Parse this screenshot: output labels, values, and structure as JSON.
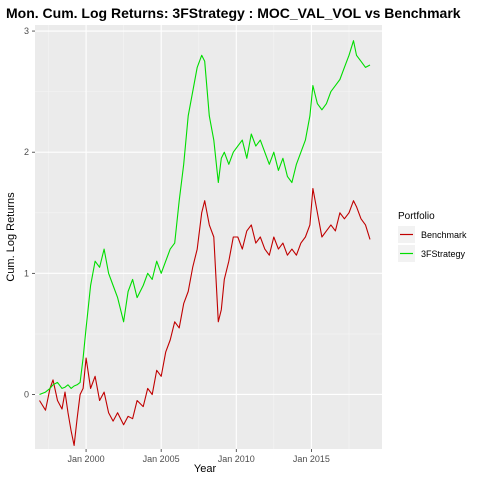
{
  "chart_data": {
    "type": "line",
    "title": "Mon. Cum. Log Returns: 3FStrategy : MOC_VAL_VOL vs Benchmark",
    "xlabel": "Year",
    "ylabel": "Cum. Log Returns",
    "x_tick_labels": [
      "Jan 2000",
      "Jan 2005",
      "Jan 2010",
      "Jan 2015"
    ],
    "x_tick_values": [
      2000,
      2005,
      2010,
      2015
    ],
    "y_tick_labels": [
      "0",
      "1",
      "2",
      "3"
    ],
    "y_tick_values": [
      0,
      1,
      2,
      3
    ],
    "xlim": [
      1996.6,
      2019.7
    ],
    "ylim": [
      -0.45,
      3.05
    ],
    "grid": true,
    "legend": {
      "title": "Portfolio",
      "position": "right"
    },
    "series": [
      {
        "name": "Benchmark",
        "color": "#c00000",
        "x": [
          1996.9,
          1997.3,
          1997.6,
          1997.8,
          1998.1,
          1998.4,
          1998.6,
          1998.8,
          1999.0,
          1999.2,
          1999.4,
          1999.6,
          1999.8,
          2000.0,
          2000.3,
          2000.6,
          2000.9,
          2001.2,
          2001.5,
          2001.8,
          2002.1,
          2002.5,
          2002.8,
          2003.1,
          2003.4,
          2003.8,
          2004.1,
          2004.4,
          2004.7,
          2005.0,
          2005.3,
          2005.6,
          2005.9,
          2006.2,
          2006.5,
          2006.8,
          2007.1,
          2007.4,
          2007.7,
          2007.9,
          2008.2,
          2008.5,
          2008.8,
          2009.0,
          2009.2,
          2009.5,
          2009.8,
          2010.1,
          2010.4,
          2010.7,
          2011.0,
          2011.3,
          2011.6,
          2011.9,
          2012.2,
          2012.5,
          2012.8,
          2013.1,
          2013.4,
          2013.7,
          2014.0,
          2014.3,
          2014.6,
          2014.9,
          2015.1,
          2015.4,
          2015.7,
          2016.0,
          2016.3,
          2016.6,
          2016.9,
          2017.2,
          2017.5,
          2017.8,
          2018.0,
          2018.3,
          2018.6,
          2018.9
        ],
        "values": [
          -0.05,
          -0.13,
          0.05,
          0.12,
          -0.05,
          -0.12,
          0.02,
          -0.15,
          -0.3,
          -0.42,
          -0.2,
          0.0,
          0.05,
          0.3,
          0.05,
          0.15,
          -0.05,
          0.02,
          -0.15,
          -0.22,
          -0.15,
          -0.25,
          -0.18,
          -0.2,
          -0.05,
          -0.1,
          0.05,
          0.0,
          0.2,
          0.15,
          0.35,
          0.45,
          0.6,
          0.55,
          0.75,
          0.85,
          1.05,
          1.2,
          1.5,
          1.6,
          1.4,
          1.3,
          0.6,
          0.7,
          0.95,
          1.1,
          1.3,
          1.3,
          1.2,
          1.35,
          1.4,
          1.25,
          1.3,
          1.2,
          1.15,
          1.3,
          1.2,
          1.25,
          1.15,
          1.2,
          1.15,
          1.25,
          1.3,
          1.4,
          1.7,
          1.5,
          1.3,
          1.35,
          1.4,
          1.35,
          1.5,
          1.45,
          1.5,
          1.6,
          1.55,
          1.45,
          1.4,
          1.28
        ]
      },
      {
        "name": "3FStrategy",
        "color": "#00dd00",
        "x": [
          1996.9,
          1997.3,
          1997.6,
          1997.8,
          1998.1,
          1998.4,
          1998.6,
          1998.8,
          1999.0,
          1999.2,
          1999.4,
          1999.6,
          1999.8,
          2000.0,
          2000.3,
          2000.6,
          2000.9,
          2001.2,
          2001.5,
          2001.8,
          2002.1,
          2002.5,
          2002.8,
          2003.1,
          2003.4,
          2003.8,
          2004.1,
          2004.4,
          2004.7,
          2005.0,
          2005.3,
          2005.6,
          2005.9,
          2006.2,
          2006.5,
          2006.8,
          2007.1,
          2007.4,
          2007.7,
          2007.9,
          2008.2,
          2008.5,
          2008.8,
          2009.0,
          2009.2,
          2009.5,
          2009.8,
          2010.1,
          2010.4,
          2010.7,
          2011.0,
          2011.3,
          2011.6,
          2011.9,
          2012.2,
          2012.5,
          2012.8,
          2013.1,
          2013.4,
          2013.7,
          2014.0,
          2014.3,
          2014.6,
          2014.9,
          2015.1,
          2015.4,
          2015.7,
          2016.0,
          2016.3,
          2016.6,
          2016.9,
          2017.2,
          2017.5,
          2017.8,
          2018.0,
          2018.3,
          2018.6,
          2018.9
        ],
        "values": [
          0.0,
          0.02,
          0.05,
          0.08,
          0.1,
          0.05,
          0.06,
          0.08,
          0.05,
          0.07,
          0.08,
          0.1,
          0.3,
          0.55,
          0.9,
          1.1,
          1.05,
          1.2,
          1.0,
          0.9,
          0.8,
          0.6,
          0.85,
          0.95,
          0.8,
          0.9,
          1.0,
          0.95,
          1.1,
          1.0,
          1.1,
          1.2,
          1.25,
          1.6,
          1.9,
          2.3,
          2.5,
          2.7,
          2.8,
          2.75,
          2.3,
          2.1,
          1.75,
          1.95,
          2.0,
          1.9,
          2.0,
          2.05,
          2.1,
          1.95,
          2.15,
          2.05,
          2.1,
          2.0,
          1.9,
          2.0,
          1.85,
          1.95,
          1.8,
          1.75,
          1.9,
          2.0,
          2.1,
          2.3,
          2.55,
          2.4,
          2.35,
          2.4,
          2.5,
          2.55,
          2.6,
          2.7,
          2.8,
          2.92,
          2.8,
          2.75,
          2.7,
          2.72
        ]
      }
    ]
  }
}
